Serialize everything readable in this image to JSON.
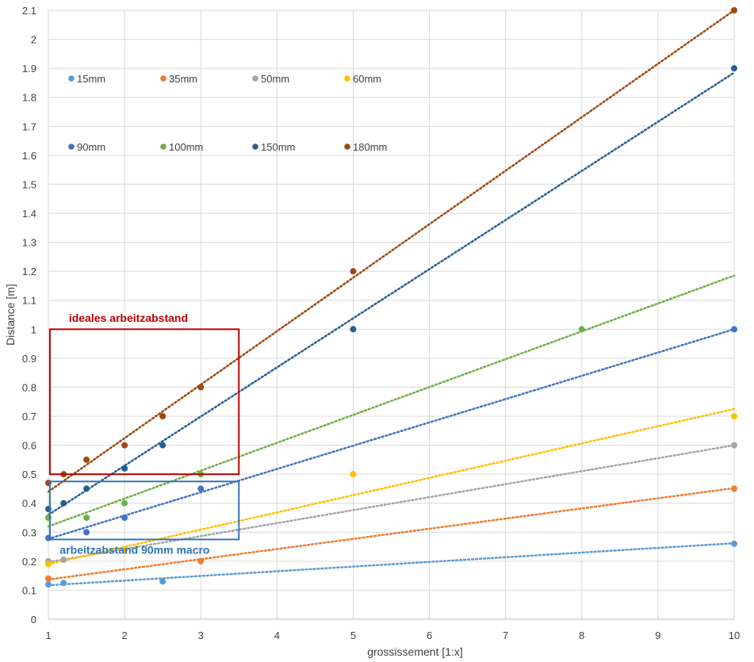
{
  "chart_data": {
    "type": "scatter",
    "title": "",
    "xlabel": "grossissement [1:x]",
    "ylabel": "Distance [m]",
    "xlim": [
      1,
      10
    ],
    "ylim": [
      0,
      2.1
    ],
    "x_ticks": [
      "1",
      "2",
      "3",
      "4",
      "5",
      "6",
      "7",
      "8",
      "9",
      "10"
    ],
    "y_ticks": [
      "0",
      "0.1",
      "0.2",
      "0.3",
      "0.4",
      "0.5",
      "0.6",
      "0.7",
      "0.8",
      "0.9",
      "1",
      "1.1",
      "1.2",
      "1.3",
      "1.4",
      "1.5",
      "1.6",
      "1.7",
      "1.8",
      "1.9",
      "2",
      "2.1"
    ],
    "grid": true,
    "trendlines": "linear, dotted",
    "legend_position": "top-left",
    "series": [
      {
        "name": "15mm",
        "color": "#5b9bd5",
        "points": [
          [
            1,
            0.12
          ],
          [
            1.2,
            0.125
          ],
          [
            2.5,
            0.13
          ],
          [
            10,
            0.26
          ]
        ],
        "trend": [
          [
            1,
            0.117
          ],
          [
            10,
            0.262
          ]
        ]
      },
      {
        "name": "35mm",
        "color": "#ed7d31",
        "points": [
          [
            1,
            0.14
          ],
          [
            3,
            0.2
          ],
          [
            10,
            0.45
          ]
        ],
        "trend": [
          [
            1,
            0.137
          ],
          [
            10,
            0.452
          ]
        ]
      },
      {
        "name": "50mm",
        "color": "#a5a5a5",
        "points": [
          [
            1,
            0.2
          ],
          [
            1.2,
            0.205
          ],
          [
            10,
            0.6
          ]
        ],
        "trend": [
          [
            1,
            0.197
          ],
          [
            10,
            0.6
          ]
        ]
      },
      {
        "name": "60mm",
        "color": "#ffc000",
        "points": [
          [
            1,
            0.19
          ],
          [
            2,
            0.24
          ],
          [
            5,
            0.5
          ],
          [
            10,
            0.7
          ]
        ],
        "trend": [
          [
            1,
            0.19
          ],
          [
            10,
            0.725
          ]
        ]
      },
      {
        "name": "90mm",
        "color": "#4472c4",
        "points": [
          [
            1,
            0.28
          ],
          [
            1.5,
            0.3
          ],
          [
            2,
            0.35
          ],
          [
            3,
            0.45
          ],
          [
            10,
            1.0
          ]
        ],
        "trend": [
          [
            1,
            0.277
          ],
          [
            10,
            1.0
          ]
        ]
      },
      {
        "name": "100mm",
        "color": "#70ad47",
        "points": [
          [
            1,
            0.35
          ],
          [
            1.5,
            0.35
          ],
          [
            2,
            0.4
          ],
          [
            3,
            0.5
          ],
          [
            8,
            1.0
          ]
        ],
        "trend": [
          [
            1,
            0.32
          ],
          [
            10,
            1.185
          ]
        ]
      },
      {
        "name": "150mm",
        "color": "#255e91",
        "points": [
          [
            1,
            0.38
          ],
          [
            1.2,
            0.4
          ],
          [
            1.5,
            0.45
          ],
          [
            2,
            0.52
          ],
          [
            2.5,
            0.6
          ],
          [
            5,
            1.0
          ],
          [
            10,
            1.9
          ]
        ],
        "trend": [
          [
            1,
            0.36
          ],
          [
            10,
            1.885
          ]
        ]
      },
      {
        "name": "180mm",
        "color": "#9e480e",
        "points": [
          [
            1,
            0.47
          ],
          [
            1.2,
            0.5
          ],
          [
            1.5,
            0.55
          ],
          [
            2,
            0.6
          ],
          [
            2.5,
            0.7
          ],
          [
            3,
            0.8
          ],
          [
            5,
            1.2
          ],
          [
            10,
            2.1
          ]
        ],
        "trend": [
          [
            1,
            0.44
          ],
          [
            10,
            2.1
          ]
        ]
      }
    ],
    "annotations": [
      {
        "text": "ideales arbeitzabstand",
        "color": "#c00000",
        "box": {
          "x0": 1.02,
          "x1": 3.5,
          "y0": 0.5,
          "y1": 1.0
        },
        "label_at": [
          1.3,
          1.025
        ]
      },
      {
        "text": "arbeitzabstand 90mm macro",
        "color": "#2e75b6",
        "box": {
          "x0": 1.02,
          "x1": 3.5,
          "y0": 0.275,
          "y1": 0.475
        },
        "label_at": [
          1.15,
          0.225
        ]
      }
    ]
  }
}
